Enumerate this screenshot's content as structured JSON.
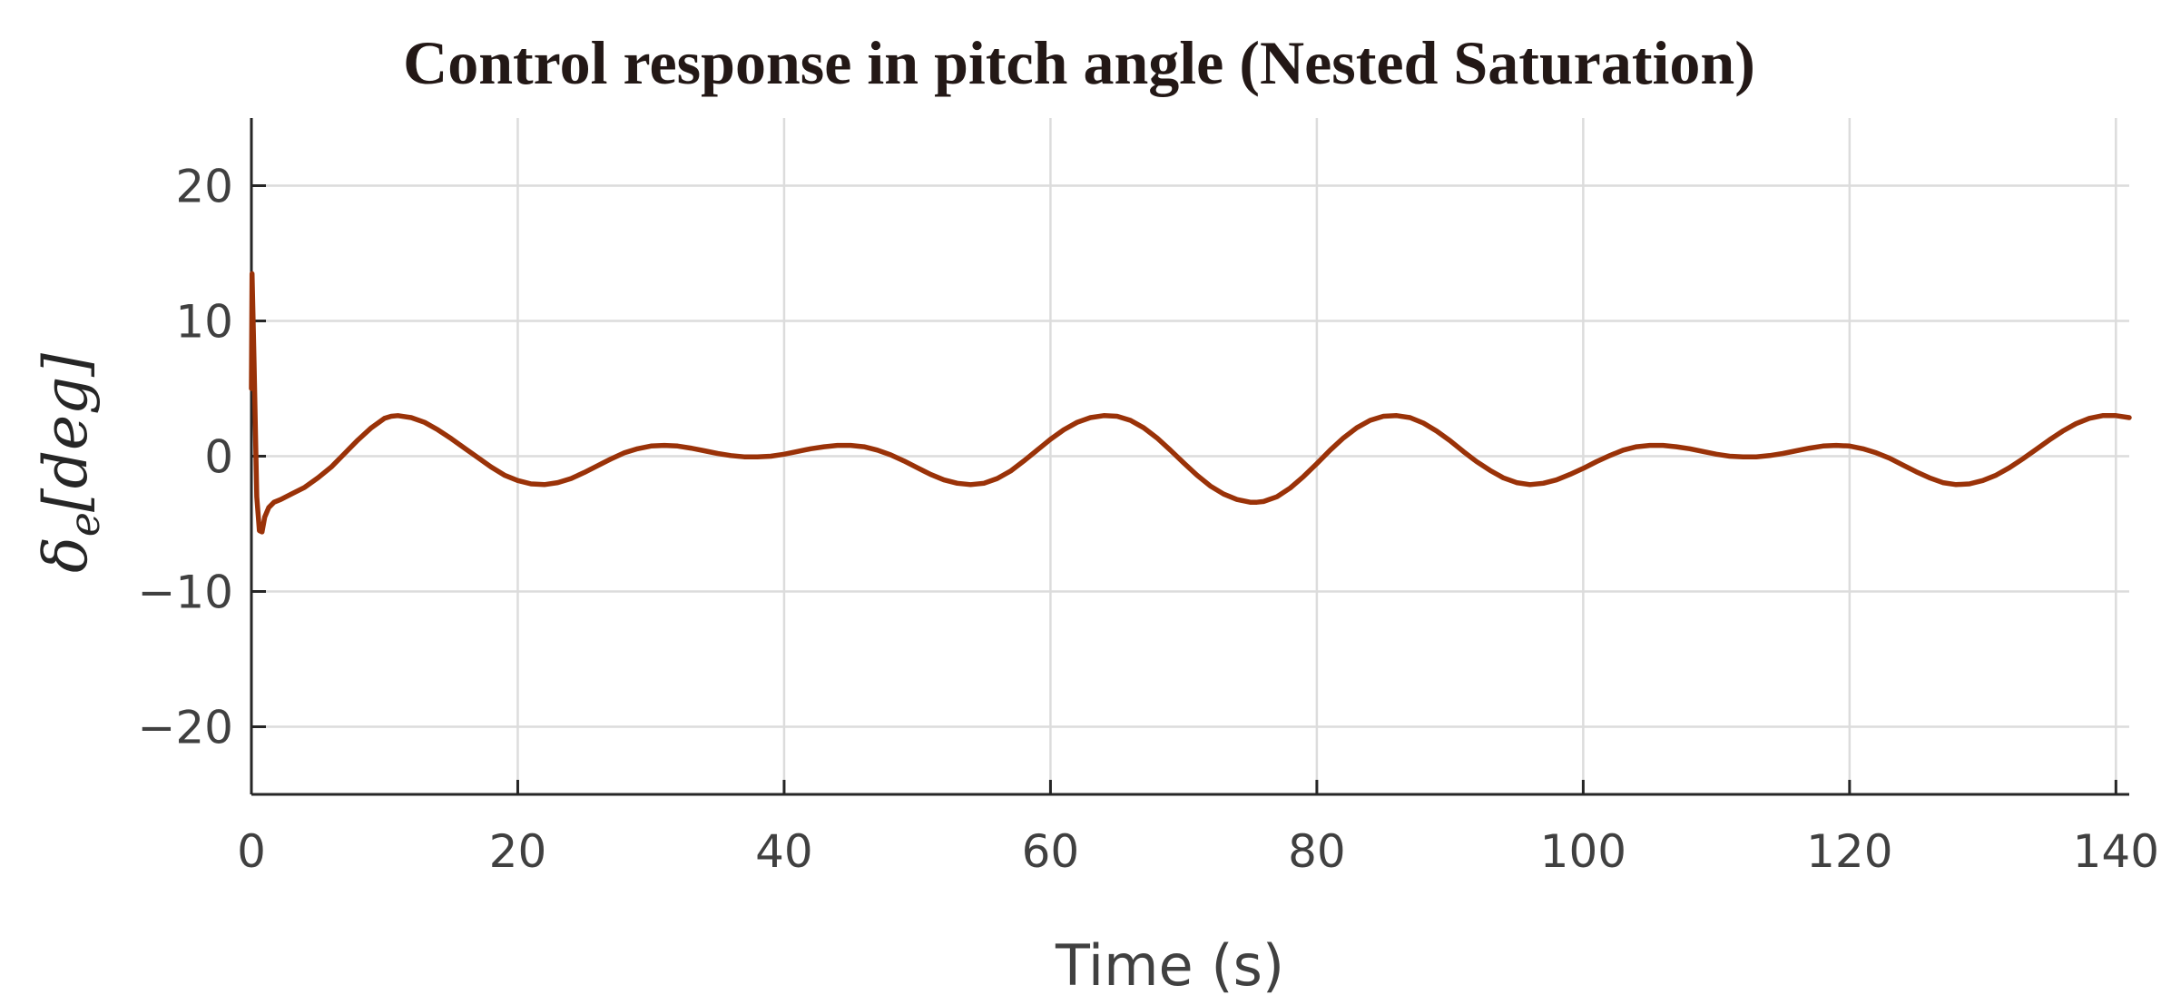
{
  "chart_data": {
    "type": "line",
    "title": "Control response in pitch angle (Nested Saturation)",
    "xlabel": "Time (s)",
    "ylabel_symbol": "δ",
    "ylabel_subscript": "e",
    "ylabel_unit": "[deg]",
    "xlim": [
      0,
      141
    ],
    "ylim": [
      -25,
      25
    ],
    "xticks": [
      0,
      20,
      40,
      60,
      80,
      100,
      120,
      140
    ],
    "yticks": [
      20,
      10,
      0,
      -10,
      -20
    ],
    "ytick_labels": [
      "20",
      "10",
      "0",
      "−10",
      "−20"
    ],
    "grid": true,
    "colors": {
      "series": "#9a3208",
      "grid": "#dcdcdc",
      "axis": "#262626"
    },
    "series": [
      {
        "x": [
          0,
          0.05,
          0.2,
          0.4,
          0.6,
          0.8,
          1.0,
          1.3,
          1.7,
          2.2,
          3,
          4,
          5,
          6,
          7,
          8,
          9,
          10,
          10.5,
          11,
          12,
          13,
          14,
          15,
          16,
          17,
          18,
          19,
          20,
          21,
          22,
          23,
          24,
          25,
          26,
          27,
          28,
          29,
          30,
          31,
          32,
          33,
          34,
          35,
          36,
          37,
          38,
          39,
          40,
          41,
          42,
          43,
          44,
          45,
          46,
          47,
          48,
          49,
          50,
          51,
          52,
          53,
          54,
          55,
          56,
          57,
          58,
          59,
          60,
          61,
          62,
          63,
          64,
          65,
          66,
          67,
          68,
          69,
          70,
          71,
          72,
          73,
          74,
          75,
          75.5,
          76,
          77,
          78,
          79,
          80,
          81,
          82,
          83,
          84,
          85,
          86,
          87,
          88,
          89,
          90,
          91,
          92,
          93,
          94,
          95,
          96,
          97,
          98,
          99,
          100,
          101,
          102,
          103,
          104,
          105,
          106,
          107,
          108,
          109,
          110,
          111,
          112,
          113,
          114,
          115,
          116,
          117,
          118,
          119,
          120,
          121,
          122,
          123,
          124,
          125,
          126,
          127,
          128,
          129,
          130,
          131,
          132,
          133,
          134,
          135,
          136,
          137,
          138,
          139,
          140,
          141
        ],
        "y": [
          5,
          13.5,
          7,
          -3,
          -5.5,
          -5.6,
          -4.5,
          -3.8,
          -3.4,
          -3.2,
          -2.8,
          -2.3,
          -1.6,
          -0.8,
          0.2,
          1.2,
          2.1,
          2.8,
          2.95,
          3.0,
          2.85,
          2.5,
          1.95,
          1.3,
          0.6,
          -0.1,
          -0.8,
          -1.4,
          -1.8,
          -2.05,
          -2.1,
          -1.95,
          -1.65,
          -1.2,
          -0.7,
          -0.2,
          0.25,
          0.55,
          0.75,
          0.8,
          0.75,
          0.6,
          0.4,
          0.2,
          0.05,
          -0.05,
          -0.05,
          0.0,
          0.15,
          0.35,
          0.55,
          0.7,
          0.8,
          0.8,
          0.7,
          0.45,
          0.1,
          -0.35,
          -0.85,
          -1.35,
          -1.75,
          -2.0,
          -2.1,
          -2.0,
          -1.65,
          -1.1,
          -0.35,
          0.45,
          1.25,
          1.95,
          2.5,
          2.85,
          3.0,
          2.95,
          2.65,
          2.1,
          1.35,
          0.45,
          -0.5,
          -1.4,
          -2.2,
          -2.8,
          -3.2,
          -3.4,
          -3.4,
          -3.35,
          -3.0,
          -2.35,
          -1.5,
          -0.55,
          0.45,
          1.35,
          2.1,
          2.65,
          2.95,
          3.0,
          2.85,
          2.45,
          1.85,
          1.15,
          0.35,
          -0.4,
          -1.05,
          -1.6,
          -1.95,
          -2.1,
          -2.0,
          -1.75,
          -1.35,
          -0.9,
          -0.4,
          0.05,
          0.45,
          0.7,
          0.8,
          0.8,
          0.7,
          0.55,
          0.35,
          0.15,
          0.0,
          -0.05,
          -0.05,
          0.05,
          0.2,
          0.4,
          0.6,
          0.75,
          0.8,
          0.75,
          0.55,
          0.25,
          -0.15,
          -0.65,
          -1.15,
          -1.6,
          -1.95,
          -2.1,
          -2.05,
          -1.8,
          -1.4,
          -0.85,
          -0.2,
          0.5,
          1.2,
          1.85,
          2.4,
          2.8,
          3.0,
          3.0,
          2.85
        ]
      }
    ]
  }
}
